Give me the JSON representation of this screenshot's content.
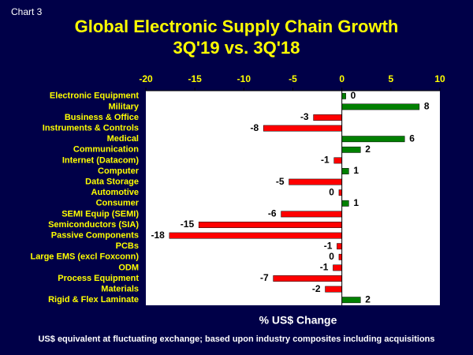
{
  "chart_data": {
    "type": "hbar",
    "corner_label": "Chart 3",
    "title": "Global Electronic Supply Chain Growth",
    "subtitle": "3Q'19 vs. 3Q'18",
    "x_label": "% US$ Change",
    "footnote": "US$ equivalent at fluctuating exchange; based upon industry composites  including acquisitions",
    "categories": [
      "Electronic Equipment",
      "Military",
      "Business & Office",
      "Instruments & Controls",
      "Medical",
      "Communication",
      "Internet (Datacom)",
      "Computer",
      "Data Storage",
      "Automotive",
      "Consumer",
      "SEMI Equip (SEMI)",
      "Semiconductors (SIA)",
      "Passive Components",
      "PCBs",
      "Large EMS (excl Foxconn)",
      "ODM",
      "Process Equipment",
      "Materials",
      "Rigid & Flex Laminate"
    ],
    "values": [
      0.4,
      7.9,
      -2.9,
      -8.0,
      6.4,
      1.9,
      -0.8,
      0.7,
      -5.4,
      -0.3,
      0.7,
      -6.2,
      -14.6,
      -17.6,
      -0.5,
      -0.3,
      -0.9,
      -7.0,
      -1.7,
      1.9
    ],
    "value_labels": [
      "0",
      "8",
      "-3",
      "-8",
      "6",
      "2",
      "-1",
      "1",
      "-5",
      "0",
      "1",
      "-6",
      "-15",
      "-18",
      "-1",
      "0",
      "-1",
      "-7",
      "-2",
      "2"
    ],
    "xlim": [
      -20,
      10
    ],
    "xticks": [
      -20,
      -15,
      -10,
      -5,
      0,
      5,
      10
    ],
    "positive_color": "#008000",
    "negative_color": "#ff0000"
  }
}
